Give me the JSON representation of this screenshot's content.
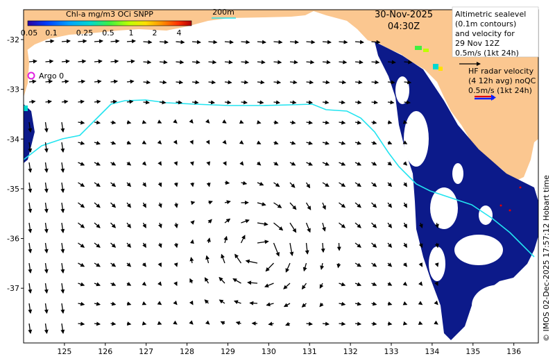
{
  "colorbar": {
    "title": "Chl-a mg/m3 OCi SNPP",
    "ticks": [
      "0.05",
      "0.1",
      "0.25",
      "0.5",
      "1",
      "2",
      "4"
    ],
    "colors": [
      "#2b00a0",
      "#0040ff",
      "#00a0ff",
      "#00e0c0",
      "#40ff40",
      "#c0ff00",
      "#ffe000",
      "#ff9000",
      "#ff3000",
      "#b00000"
    ]
  },
  "isobath_label": "200m",
  "datetime": {
    "date": "30-Nov-2025",
    "time": "04:30Z"
  },
  "legend_altimetry": {
    "lines": [
      "Altimetric sealevel",
      "(0.1m contours)",
      "and velocity for",
      "29 Nov 12Z",
      "0.5m/s (1kt 24h)"
    ]
  },
  "legend_hfradar": {
    "lines": [
      "HF radar velocity",
      "(4 12h avg) noQC",
      "0.5m/s (1kt 24h)"
    ]
  },
  "argo": {
    "label": "Argo 0"
  },
  "credit": "© IMOS 02-Dec-2025 17:57:12 Hobart time",
  "axes": {
    "x_ticks": [
      125,
      126,
      127,
      128,
      129,
      130,
      131,
      132,
      133,
      134,
      135,
      136
    ],
    "y_ticks": [
      -32,
      -33,
      -34,
      -35,
      -36,
      -37
    ],
    "x_range": [
      124.0,
      136.6
    ],
    "y_range": [
      -38.1,
      -31.4
    ]
  },
  "colors": {
    "land": "#fbc790",
    "ocean": "#ffffff",
    "isobath": "#22e4f0",
    "chl_low": "#0c1a8a",
    "hf_red": "#e00000",
    "hf_blue": "#1020ff"
  }
}
